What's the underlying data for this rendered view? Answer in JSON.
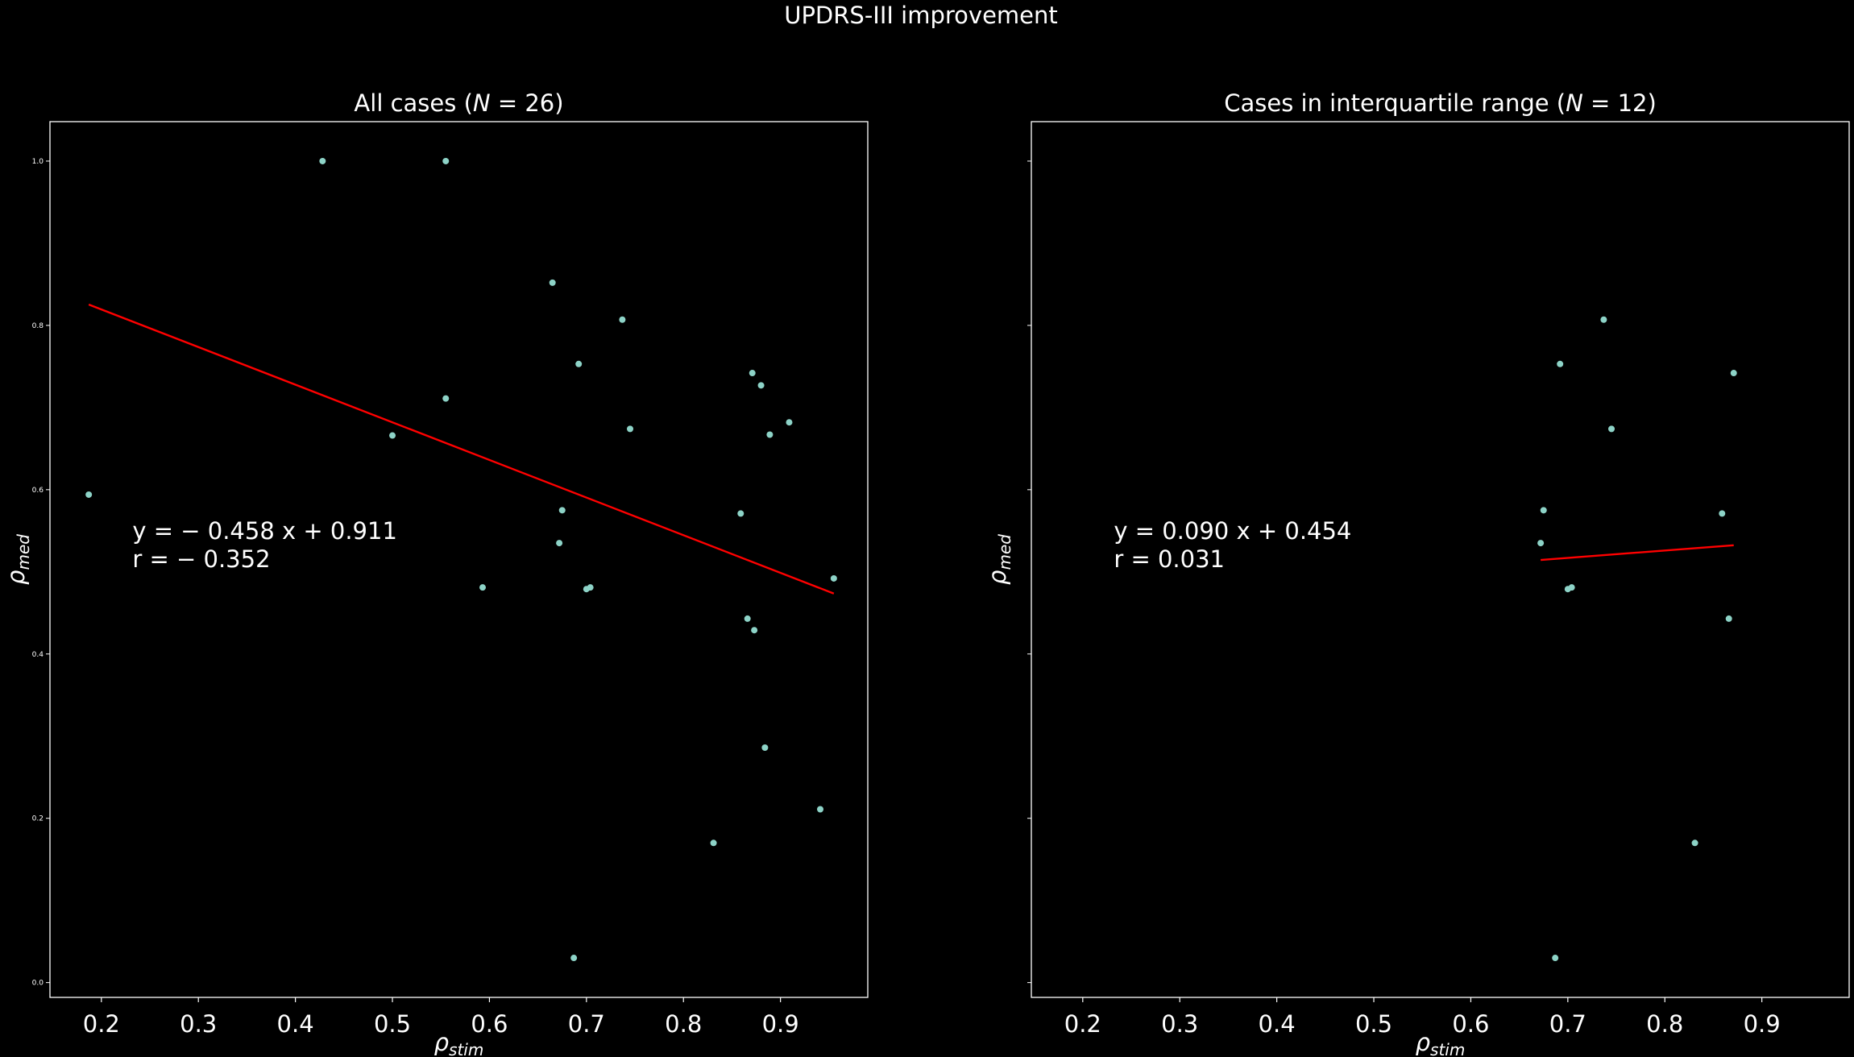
{
  "figure": {
    "suptitle": "UPDRS-III improvement",
    "background": "#000000",
    "axes_color": "#ffffff",
    "point_color": "#8dd3c7",
    "fit_color": "#ff0000"
  },
  "chart_data": [
    {
      "type": "scatter",
      "title_prefix": "All cases (",
      "title_var": "N",
      "title_suffix": " = 26)",
      "xlabel_main": "ρ",
      "xlabel_sub": "stim",
      "ylabel_main": "ρ",
      "ylabel_sub": "med",
      "xlim": [
        0.147,
        0.99
      ],
      "ylim": [
        -0.018,
        1.048
      ],
      "xticks": [
        0.2,
        0.3,
        0.4,
        0.5,
        0.6,
        0.7,
        0.8,
        0.9
      ],
      "xtick_labels": [
        "0.2",
        "0.3",
        "0.4",
        "0.5",
        "0.6",
        "0.7",
        "0.8",
        "0.9"
      ],
      "yticks": [
        0.0,
        0.2,
        0.4,
        0.6,
        0.8,
        1.0
      ],
      "ytick_labels": [
        "0.0",
        "0.2",
        "0.4",
        "0.6",
        "0.8",
        "1.0"
      ],
      "show_ytick_labels": true,
      "points": [
        {
          "x": 0.187,
          "y": 0.594
        },
        {
          "x": 0.428,
          "y": 1.0
        },
        {
          "x": 0.555,
          "y": 1.0
        },
        {
          "x": 0.555,
          "y": 0.711
        },
        {
          "x": 0.5,
          "y": 0.666
        },
        {
          "x": 0.593,
          "y": 0.481
        },
        {
          "x": 0.665,
          "y": 0.852
        },
        {
          "x": 0.692,
          "y": 0.753
        },
        {
          "x": 0.675,
          "y": 0.575
        },
        {
          "x": 0.672,
          "y": 0.535
        },
        {
          "x": 0.7,
          "y": 0.479
        },
        {
          "x": 0.704,
          "y": 0.481
        },
        {
          "x": 0.737,
          "y": 0.807
        },
        {
          "x": 0.745,
          "y": 0.674
        },
        {
          "x": 0.687,
          "y": 0.03
        },
        {
          "x": 0.831,
          "y": 0.17
        },
        {
          "x": 0.859,
          "y": 0.571
        },
        {
          "x": 0.866,
          "y": 0.443
        },
        {
          "x": 0.873,
          "y": 0.429
        },
        {
          "x": 0.871,
          "y": 0.742
        },
        {
          "x": 0.88,
          "y": 0.727
        },
        {
          "x": 0.889,
          "y": 0.667
        },
        {
          "x": 0.884,
          "y": 0.286
        },
        {
          "x": 0.909,
          "y": 0.682
        },
        {
          "x": 0.941,
          "y": 0.211
        },
        {
          "x": 0.955,
          "y": 0.492
        }
      ],
      "fit": {
        "slope": -0.458,
        "intercept": 0.911,
        "x_range": [
          0.187,
          0.955
        ]
      },
      "equation_text": "y = − 0.458 x + 0.911",
      "r_text": "r = − 0.352",
      "annotation_at": [
        0.232,
        0.54
      ]
    },
    {
      "type": "scatter",
      "title_prefix": "Cases in interquartile range (",
      "title_var": "N",
      "title_suffix": " = 12)",
      "xlabel_main": "ρ",
      "xlabel_sub": "stim",
      "ylabel_main": "ρ",
      "ylabel_sub": "med",
      "xlim": [
        0.147,
        0.99
      ],
      "ylim": [
        -0.018,
        1.048
      ],
      "xticks": [
        0.2,
        0.3,
        0.4,
        0.5,
        0.6,
        0.7,
        0.8,
        0.9
      ],
      "xtick_labels": [
        "0.2",
        "0.3",
        "0.4",
        "0.5",
        "0.6",
        "0.7",
        "0.8",
        "0.9"
      ],
      "yticks": [
        0.0,
        0.2,
        0.4,
        0.6,
        0.8,
        1.0
      ],
      "ytick_labels": [
        "",
        "",
        "",
        "",
        "",
        ""
      ],
      "show_ytick_labels": false,
      "points": [
        {
          "x": 0.692,
          "y": 0.753
        },
        {
          "x": 0.737,
          "y": 0.807
        },
        {
          "x": 0.745,
          "y": 0.674
        },
        {
          "x": 0.675,
          "y": 0.575
        },
        {
          "x": 0.672,
          "y": 0.535
        },
        {
          "x": 0.7,
          "y": 0.479
        },
        {
          "x": 0.704,
          "y": 0.481
        },
        {
          "x": 0.687,
          "y": 0.03
        },
        {
          "x": 0.831,
          "y": 0.17
        },
        {
          "x": 0.859,
          "y": 0.571
        },
        {
          "x": 0.866,
          "y": 0.443
        },
        {
          "x": 0.871,
          "y": 0.742
        }
      ],
      "fit": {
        "slope": 0.09,
        "intercept": 0.454,
        "x_range": [
          0.672,
          0.871
        ]
      },
      "equation_text": "y = 0.090 x + 0.454",
      "r_text": "r = 0.031",
      "annotation_at": [
        0.232,
        0.54
      ]
    }
  ]
}
